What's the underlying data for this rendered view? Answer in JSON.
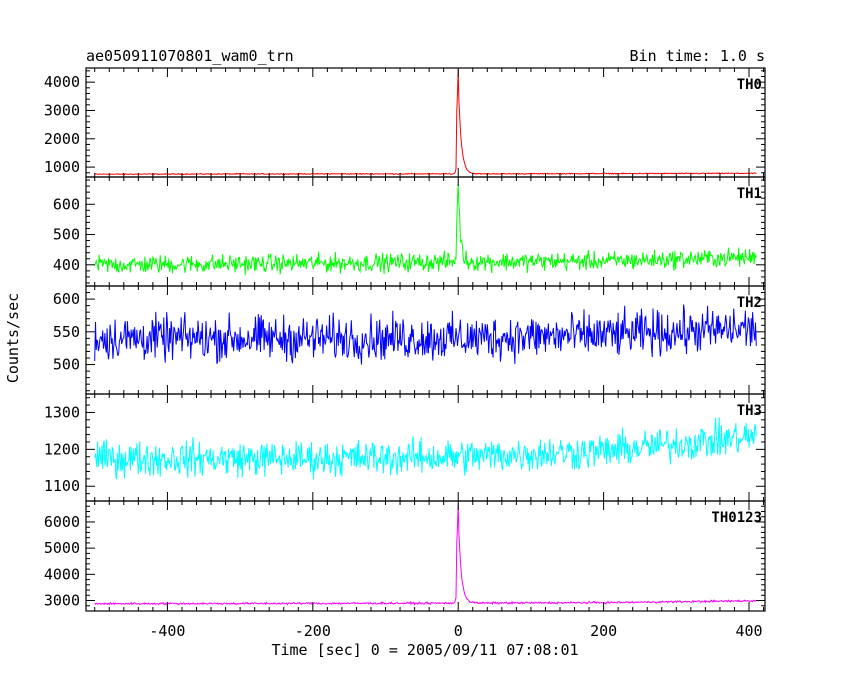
{
  "header": {
    "title": "ae050911070801_wam0_trn",
    "bin_time": "Bin time: 1.0 s"
  },
  "chart_data": {
    "type": "line",
    "xlabel": "Time [sec] 0 = 2005/09/11 07:08:01",
    "ylabel": "Counts/sec",
    "xlim": [
      -512,
      422
    ],
    "xticks": [
      -400,
      -200,
      0,
      200,
      400
    ],
    "x_range_data": [
      -500,
      410
    ],
    "panels": [
      {
        "name": "TH0",
        "color": "#ff0000",
        "ylim": [
          650,
          4500
        ],
        "yticks": [
          1000,
          2000,
          3000,
          4000
        ],
        "baseline": [
          [
            -500,
            750
          ],
          [
            -200,
            760
          ],
          [
            0,
            760
          ],
          [
            200,
            770
          ],
          [
            410,
            780
          ]
        ],
        "noise": 25,
        "peak": {
          "x": 0,
          "y": 4450,
          "width": 4
        }
      },
      {
        "name": "TH1",
        "color": "#00ff00",
        "ylim": [
          330,
          690
        ],
        "yticks": [
          400,
          500,
          600
        ],
        "baseline": [
          [
            -500,
            400
          ],
          [
            -200,
            405
          ],
          [
            0,
            410
          ],
          [
            200,
            412
          ],
          [
            410,
            425
          ]
        ],
        "noise": 45,
        "peak": {
          "x": 0,
          "y": 690,
          "width": 3
        }
      },
      {
        "name": "TH2",
        "color": "#0000ff",
        "ylim": [
          455,
          620
        ],
        "yticks": [
          500,
          550,
          600
        ],
        "baseline": [
          [
            -500,
            540
          ],
          [
            -200,
            540
          ],
          [
            0,
            540
          ],
          [
            200,
            545
          ],
          [
            410,
            555
          ]
        ],
        "noise": 50,
        "peak": {
          "x": 0,
          "y": 540,
          "width": 1
        }
      },
      {
        "name": "TH3",
        "color": "#00ffff",
        "ylim": [
          1060,
          1350
        ],
        "yticks": [
          1100,
          1200,
          1300
        ],
        "baseline": [
          [
            -500,
            1175
          ],
          [
            -200,
            1175
          ],
          [
            0,
            1180
          ],
          [
            200,
            1195
          ],
          [
            410,
            1235
          ]
        ],
        "noise": 70,
        "peak": {
          "x": 0,
          "y": 1180,
          "width": 1
        }
      },
      {
        "name": "TH0123",
        "color": "#ff00ff",
        "ylim": [
          2600,
          6800
        ],
        "yticks": [
          3000,
          4000,
          5000,
          6000
        ],
        "baseline": [
          [
            -500,
            2880
          ],
          [
            -200,
            2890
          ],
          [
            0,
            2900
          ],
          [
            200,
            2920
          ],
          [
            410,
            2990
          ]
        ],
        "noise": 55,
        "peak": {
          "x": 0,
          "y": 6700,
          "width": 4
        }
      }
    ]
  }
}
